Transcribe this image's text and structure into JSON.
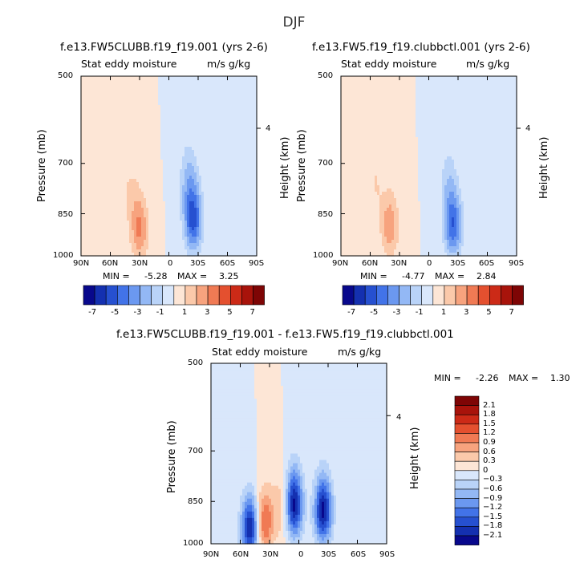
{
  "title": "DJF",
  "chart_data": [
    {
      "type": "heatmap",
      "title": "f.e13.FW5CLUBB.f19_f19.001 (yrs 2-6)",
      "subtitle_left": "Stat eddy moisture",
      "subtitle_right": "m/s g/kg",
      "xlabel": "",
      "ylabel": "Pressure (mb)",
      "ylabel_right": "Height (km)",
      "x_ticks": [
        "90N",
        "60N",
        "30N",
        "0",
        "30S",
        "60S",
        "90S"
      ],
      "y_ticks": [
        "500",
        "700",
        "850",
        "1000"
      ],
      "y_right_ticks": [
        "4"
      ],
      "xlim": [
        90,
        -90
      ],
      "ylim": [
        1000,
        500
      ],
      "min_label": "MIN =",
      "min_value": "-5.28",
      "max_label": "MAX =",
      "max_value": "3.25",
      "features": [
        {
          "lat": 30,
          "p": 900,
          "value": 3.25
        },
        {
          "lat": 40,
          "p": 780,
          "value": 1.0
        },
        {
          "lat": -25,
          "p": 870,
          "value": -5.28
        },
        {
          "lat": -20,
          "p": 750,
          "value": -2.0
        }
      ]
    },
    {
      "type": "heatmap",
      "title": "f.e13.FW5.f19_f19.clubbctl.001 (yrs 2-6)",
      "subtitle_left": "Stat eddy moisture",
      "subtitle_right": "m/s g/kg",
      "xlabel": "",
      "ylabel": "Pressure (mb)",
      "ylabel_right": "Height (km)",
      "x_ticks": [
        "90N",
        "60N",
        "30N",
        "0",
        "30S",
        "60S",
        "90S"
      ],
      "y_ticks": [
        "500",
        "700",
        "850",
        "1000"
      ],
      "y_right_ticks": [
        "4"
      ],
      "xlim": [
        90,
        -90
      ],
      "ylim": [
        1000,
        500
      ],
      "min_label": "MIN =",
      "min_value": "-4.77",
      "max_label": "MAX =",
      "max_value": "2.84",
      "features": [
        {
          "lat": 40,
          "p": 890,
          "value": 2.84
        },
        {
          "lat": 55,
          "p": 750,
          "value": 1.0
        },
        {
          "lat": -25,
          "p": 890,
          "value": -4.77
        },
        {
          "lat": -20,
          "p": 760,
          "value": -1.5
        }
      ]
    },
    {
      "type": "heatmap",
      "title": "f.e13.FW5CLUBB.f19_f19.001 - f.e13.FW5.f19_f19.clubbctl.001",
      "subtitle_left": "Stat eddy moisture",
      "subtitle_right": "m/s g/kg",
      "xlabel": "",
      "ylabel": "Pressure (mb)",
      "ylabel_right": "Height (km)",
      "x_ticks": [
        "90N",
        "60N",
        "30N",
        "0",
        "30S",
        "60S",
        "90S"
      ],
      "y_ticks": [
        "500",
        "700",
        "850",
        "1000"
      ],
      "y_right_ticks": [
        "4"
      ],
      "xlim": [
        90,
        -90
      ],
      "ylim": [
        1000,
        500
      ],
      "min_label": "MIN =",
      "min_value": "-2.26",
      "max_label": "MAX =",
      "max_value": "1.30",
      "features": [
        {
          "lat": 50,
          "p": 940,
          "value": -2.1
        },
        {
          "lat": 5,
          "p": 860,
          "value": -2.26
        },
        {
          "lat": -25,
          "p": 880,
          "value": -2.2
        },
        {
          "lat": 35,
          "p": 920,
          "value": 1.3
        },
        {
          "lat": 17,
          "p": 870,
          "value": 0.6
        }
      ]
    }
  ],
  "colorbar_top": {
    "labels": [
      "-7",
      "-5",
      "-3",
      "-1",
      "1",
      "3",
      "5",
      "7"
    ],
    "colors": [
      "#08088c",
      "#1430b0",
      "#2650d0",
      "#4273e8",
      "#6b98f0",
      "#93b8f5",
      "#b9d3f8",
      "#d9e7fb",
      "#fde6d6",
      "#fbc9aa",
      "#f7a37e",
      "#f07a54",
      "#e4502f",
      "#cc2a17",
      "#a8130b",
      "#7e0505"
    ]
  },
  "colorbar_diff": {
    "labels": [
      "2.1",
      "1.8",
      "1.5",
      "1.2",
      "0.9",
      "0.6",
      "0.3",
      "0",
      "−0.3",
      "−0.6",
      "−0.9",
      "−1.2",
      "−1.5",
      "−1.8",
      "−2.1"
    ],
    "colors": [
      "#7e0505",
      "#a8130b",
      "#cc2a17",
      "#e4502f",
      "#f07a54",
      "#f7a37e",
      "#fbc9aa",
      "#fde6d6",
      "#d9e7fb",
      "#b9d3f8",
      "#93b8f5",
      "#6b98f0",
      "#4273e8",
      "#2650d0",
      "#1430b0",
      "#08088c"
    ]
  }
}
